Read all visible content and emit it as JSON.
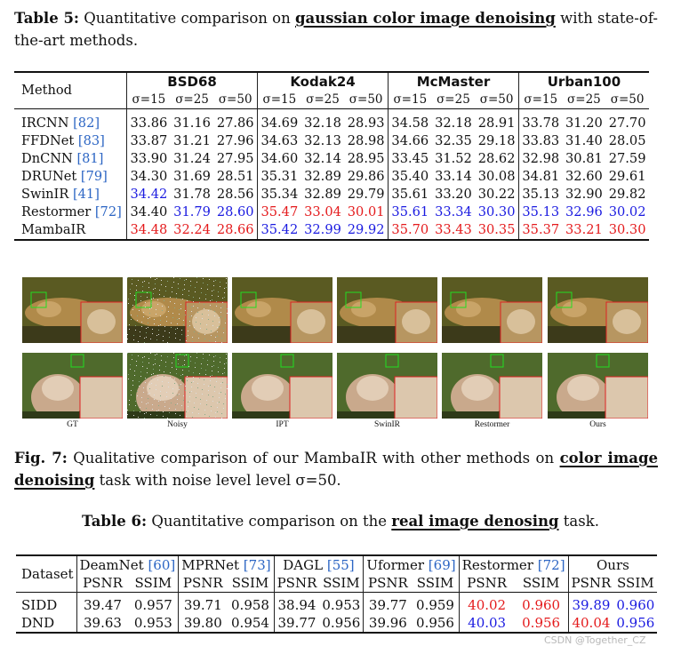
{
  "table5": {
    "label": "Table 5:",
    "caption_pre": "Quantitative comparison on",
    "caption_bold": "gaussian color image denoising",
    "caption_post": "with state-of-the-art methods.",
    "method_header": "Method",
    "datasets": [
      "BSD68",
      "Kodak24",
      "McMaster",
      "Urban100"
    ],
    "sigmas": [
      "σ=15",
      "σ=25",
      "σ=50"
    ],
    "rows": [
      {
        "method": "IRCNN",
        "cite": "[82]",
        "values": [
          "33.86",
          "31.16",
          "27.86",
          "34.69",
          "32.18",
          "28.93",
          "34.58",
          "32.18",
          "28.91",
          "33.78",
          "31.20",
          "27.70"
        ],
        "colors": [
          "",
          "",
          "",
          "",
          "",
          "",
          "",
          "",
          "",
          "",
          "",
          ""
        ]
      },
      {
        "method": "FFDNet",
        "cite": "[83]",
        "values": [
          "33.87",
          "31.21",
          "27.96",
          "34.63",
          "32.13",
          "28.98",
          "34.66",
          "32.35",
          "29.18",
          "33.83",
          "31.40",
          "28.05"
        ],
        "colors": [
          "",
          "",
          "",
          "",
          "",
          "",
          "",
          "",
          "",
          "",
          "",
          ""
        ]
      },
      {
        "method": "DnCNN",
        "cite": "[81]",
        "values": [
          "33.90",
          "31.24",
          "27.95",
          "34.60",
          "32.14",
          "28.95",
          "33.45",
          "31.52",
          "28.62",
          "32.98",
          "30.81",
          "27.59"
        ],
        "colors": [
          "",
          "",
          "",
          "",
          "",
          "",
          "",
          "",
          "",
          "",
          "",
          ""
        ]
      },
      {
        "method": "DRUNet",
        "cite": "[79]",
        "values": [
          "34.30",
          "31.69",
          "28.51",
          "35.31",
          "32.89",
          "29.86",
          "35.40",
          "33.14",
          "30.08",
          "34.81",
          "32.60",
          "29.61"
        ],
        "colors": [
          "",
          "",
          "",
          "",
          "",
          "",
          "",
          "",
          "",
          "",
          "",
          ""
        ]
      },
      {
        "method": "SwinIR",
        "cite": "[41]",
        "values": [
          "34.42",
          "31.78",
          "28.56",
          "35.34",
          "32.89",
          "29.79",
          "35.61",
          "33.20",
          "30.22",
          "35.13",
          "32.90",
          "29.82"
        ],
        "colors": [
          "blue",
          "",
          "",
          "",
          "",
          "",
          "",
          "",
          "",
          "",
          "",
          ""
        ]
      },
      {
        "method": "Restormer",
        "cite": "[72]",
        "values": [
          "34.40",
          "31.79",
          "28.60",
          "35.47",
          "33.04",
          "30.01",
          "35.61",
          "33.34",
          "30.30",
          "35.13",
          "32.96",
          "30.02"
        ],
        "colors": [
          "",
          "blue",
          "blue",
          "red",
          "red",
          "red",
          "blue",
          "blue",
          "blue",
          "blue",
          "blue",
          "blue"
        ]
      },
      {
        "method": "MambaIR",
        "cite": "",
        "values": [
          "34.48",
          "32.24",
          "28.66",
          "35.42",
          "32.99",
          "29.92",
          "35.70",
          "33.43",
          "30.35",
          "35.37",
          "33.21",
          "30.30"
        ],
        "colors": [
          "red",
          "red",
          "red",
          "blue",
          "blue",
          "blue",
          "red",
          "red",
          "red",
          "red",
          "red",
          "red"
        ]
      }
    ]
  },
  "figure7": {
    "labels": [
      "GT",
      "Noisy",
      "IPT",
      "SwinIR",
      "Restormer",
      "Ours"
    ],
    "label": "Fig. 7:",
    "caption_pre": "Qualitative comparison of our MambaIR with other methods on",
    "caption_bold": "color image denoising",
    "caption_post": "task with noise level level σ=50."
  },
  "table6": {
    "label": "Table 6:",
    "caption_pre": "Quantitative comparison on the",
    "caption_bold": "real image denosing",
    "caption_post": "task.",
    "dataset_header": "Dataset",
    "methods": [
      {
        "name": "DeamNet",
        "cite": "[60]"
      },
      {
        "name": "MPRNet",
        "cite": "[73]"
      },
      {
        "name": "DAGL",
        "cite": "[55]"
      },
      {
        "name": "Uformer",
        "cite": "[69]"
      },
      {
        "name": "Restormer",
        "cite": "[72]"
      },
      {
        "name": "Ours",
        "cite": ""
      }
    ],
    "metrics": [
      "PSNR",
      "SSIM"
    ],
    "rows": [
      {
        "dataset": "SIDD",
        "values": [
          "39.47",
          "0.957",
          "39.71",
          "0.958",
          "38.94",
          "0.953",
          "39.77",
          "0.959",
          "40.02",
          "0.960",
          "39.89",
          "0.960"
        ],
        "colors": [
          "",
          "",
          "",
          "",
          "",
          "",
          "",
          "",
          "red",
          "red",
          "blue",
          "blue"
        ]
      },
      {
        "dataset": "DND",
        "values": [
          "39.63",
          "0.953",
          "39.80",
          "0.954",
          "39.77",
          "0.956",
          "39.96",
          "0.956",
          "40.03",
          "0.956",
          "40.04",
          "0.956"
        ],
        "colors": [
          "",
          "",
          "",
          "",
          "",
          "",
          "",
          "",
          "blue",
          "red",
          "red",
          "blue"
        ]
      }
    ]
  },
  "watermark": "CSDN @Together_CZ",
  "colors": {
    "best": "#e41a1c",
    "second": "#1a1ae0",
    "cite": "#2d66c4"
  }
}
